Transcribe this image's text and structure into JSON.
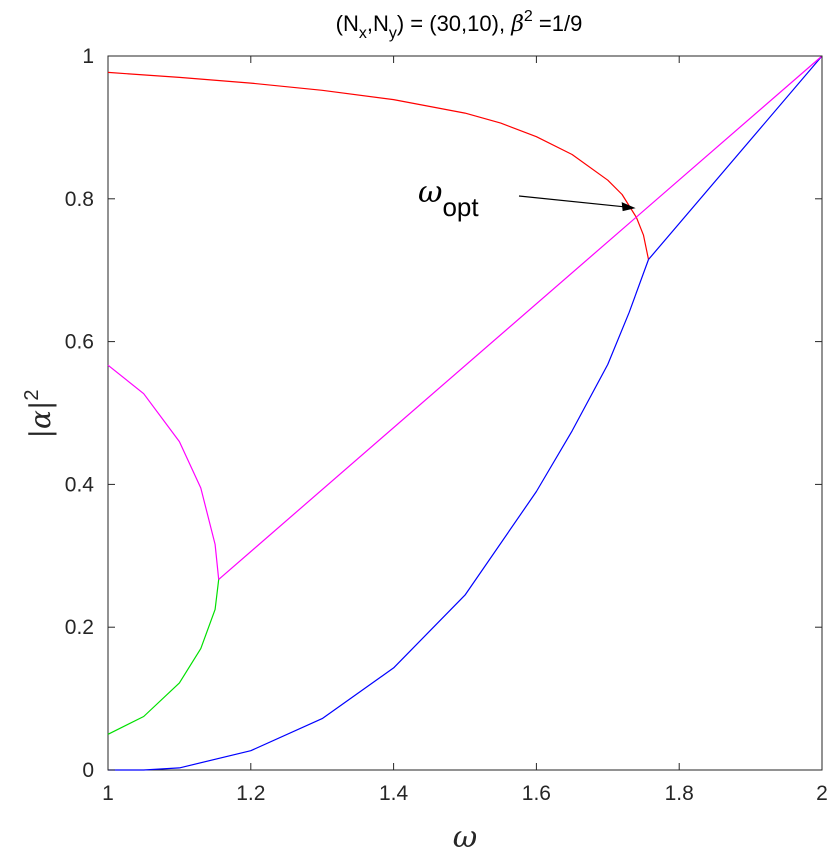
{
  "chart_data": {
    "type": "line",
    "title": "(N_x,N_y) = (30,10),  β² =1/9",
    "title_parts": {
      "open": "(N",
      "sub1": "x",
      "mid": ",N",
      "sub2": "y",
      "eq": ") = (30,10),  ",
      "beta": "β",
      "sup": "2",
      "tail": " =1/9"
    },
    "xlabel": "ω",
    "ylabel": "|α|²",
    "ylabel_parts": {
      "base": "|α|",
      "sup": "2"
    },
    "xlim": [
      1,
      2
    ],
    "ylim": [
      0,
      1
    ],
    "xticks": [
      1,
      1.2,
      1.4,
      1.6,
      1.8,
      2
    ],
    "xtick_labels": [
      "1",
      "1.2",
      "1.4",
      "1.6",
      "1.8",
      "2"
    ],
    "yticks": [
      0,
      0.2,
      0.4,
      0.6,
      0.8,
      1
    ],
    "ytick_labels": [
      "0",
      "0.2",
      "0.4",
      "0.6",
      "0.8",
      "1"
    ],
    "grid": false,
    "annotation": {
      "text_main": "ω",
      "text_sub": "opt",
      "target": [
        1.739,
        0.787
      ]
    },
    "series": [
      {
        "color": "#ff0000",
        "x": [
          1.0,
          1.1,
          1.2,
          1.3,
          1.4,
          1.5,
          1.55,
          1.6,
          1.65,
          1.7,
          1.72,
          1.74,
          1.75,
          1.757
        ],
        "y": [
          0.977,
          0.97,
          0.962,
          0.952,
          0.939,
          0.92,
          0.906,
          0.887,
          0.862,
          0.826,
          0.806,
          0.774,
          0.749,
          0.715
        ]
      },
      {
        "color": "#0000ff",
        "x": [
          1.0,
          1.05,
          1.1,
          1.2,
          1.3,
          1.4,
          1.5,
          1.6,
          1.65,
          1.7,
          1.73,
          1.757
        ],
        "y": [
          0.0,
          0.0,
          0.003,
          0.027,
          0.072,
          0.143,
          0.245,
          0.39,
          0.475,
          0.568,
          0.641,
          0.715
        ]
      },
      {
        "color": "#0000ff",
        "x": [
          1.757,
          2.0
        ],
        "y": [
          0.715,
          1.0
        ]
      },
      {
        "color": "#ff00ff",
        "x": [
          1.0,
          1.05,
          1.1,
          1.13,
          1.15,
          1.155
        ],
        "y": [
          0.567,
          0.527,
          0.46,
          0.395,
          0.316,
          0.267
        ]
      },
      {
        "color": "#ff00ff",
        "x": [
          1.155,
          2.0
        ],
        "y": [
          0.267,
          1.0
        ]
      },
      {
        "color": "#00e000",
        "x": [
          1.0,
          1.05,
          1.1,
          1.13,
          1.15,
          1.155
        ],
        "y": [
          0.05,
          0.075,
          0.122,
          0.17,
          0.225,
          0.267
        ]
      }
    ]
  }
}
